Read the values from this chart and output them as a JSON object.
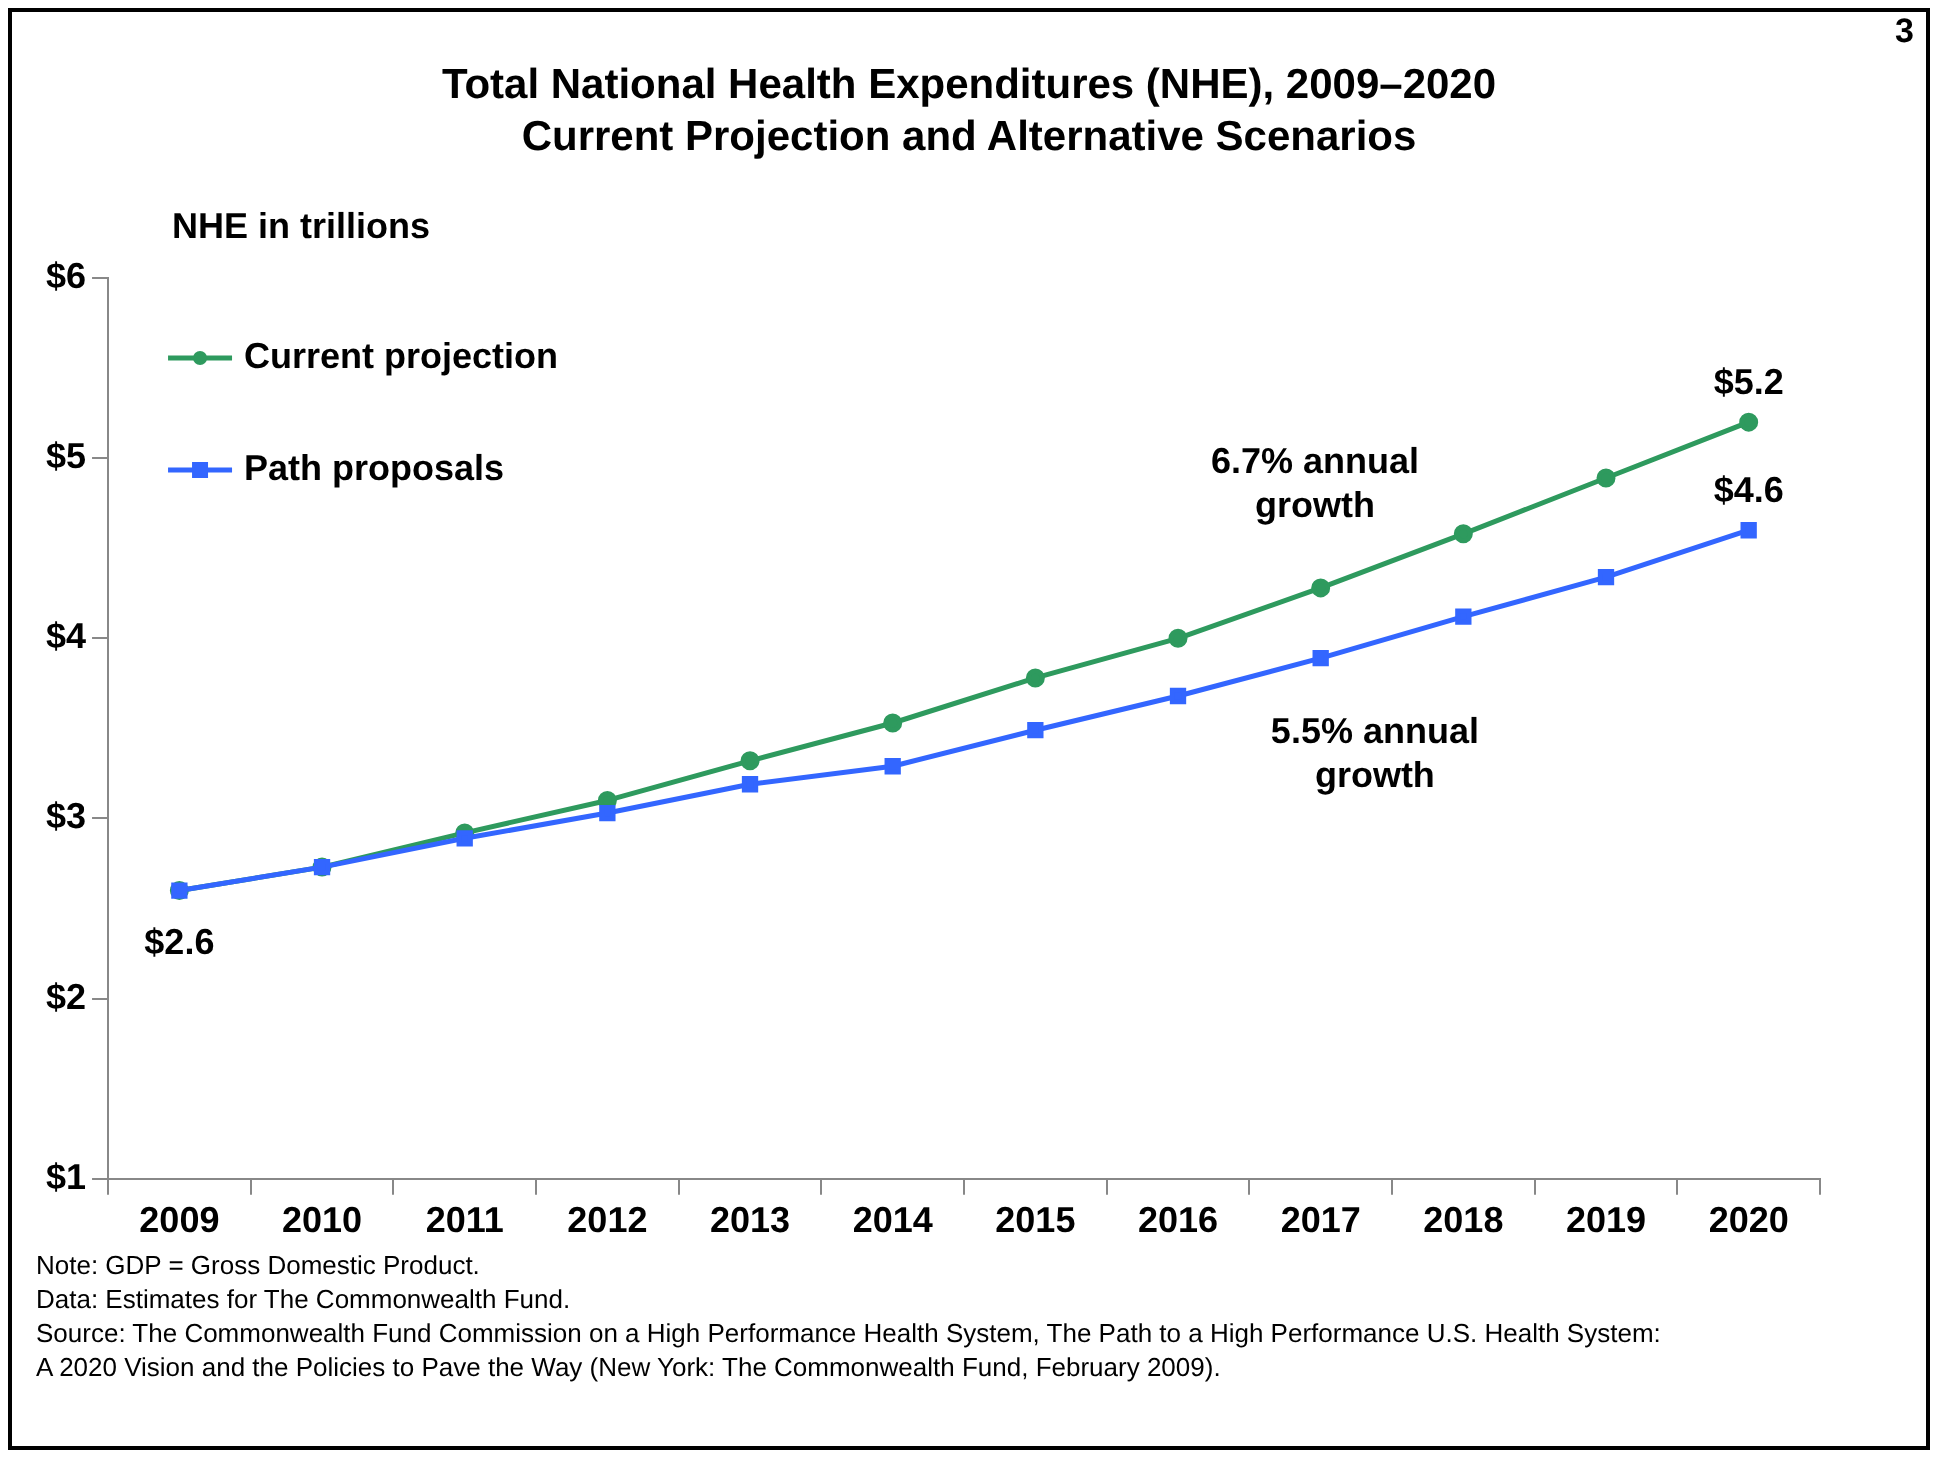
{
  "chart_data": {
    "type": "line",
    "title": "Total National Health Expenditures (NHE), 2009–2020",
    "subtitle": "Current Projection and Alternative Scenarios",
    "ylabel": "NHE in trillions",
    "categories": [
      "2009",
      "2010",
      "2011",
      "2012",
      "2013",
      "2014",
      "2015",
      "2016",
      "2017",
      "2018",
      "2019",
      "2020"
    ],
    "series": [
      {
        "name": "Current projection",
        "color": "#2e9a5e",
        "marker": "circle",
        "values": [
          2.6,
          2.73,
          2.92,
          3.1,
          3.32,
          3.53,
          3.78,
          4.0,
          4.28,
          4.58,
          4.89,
          5.2
        ],
        "value_labels": [
          "$2.6",
          null,
          null,
          null,
          null,
          null,
          null,
          null,
          null,
          null,
          null,
          "$5.2"
        ]
      },
      {
        "name": "Path proposals",
        "color": "#3366ff",
        "marker": "square",
        "values": [
          2.6,
          2.73,
          2.89,
          3.03,
          3.19,
          3.29,
          3.49,
          3.68,
          3.89,
          4.12,
          4.34,
          4.6
        ],
        "value_labels": [
          null,
          null,
          null,
          null,
          null,
          null,
          null,
          null,
          null,
          null,
          null,
          "$4.6"
        ]
      }
    ],
    "ylim": [
      1,
      6
    ],
    "yticks": [
      {
        "value": 1,
        "label": "$1"
      },
      {
        "value": 2,
        "label": "$2"
      },
      {
        "value": 3,
        "label": "$3"
      },
      {
        "value": 4,
        "label": "$4"
      },
      {
        "value": 5,
        "label": "$5"
      },
      {
        "value": 6,
        "label": "$6"
      }
    ],
    "grid": false,
    "legend": "top left",
    "annotations": [
      "6.7% annual growth",
      "5.5% annual growth",
      "3",
      "Note: GDP = Gross Domestic Product.",
      "Data: Estimates for The Commonwealth Fund.",
      "Source: The Commonwealth Fund Commission on a High Performance Health System, The Path to a High Performance U.S. Health System: A 2020 Vision and the Policies to Pave the Way (New York: The Commonwealth Fund, February 2009)."
    ]
  }
}
